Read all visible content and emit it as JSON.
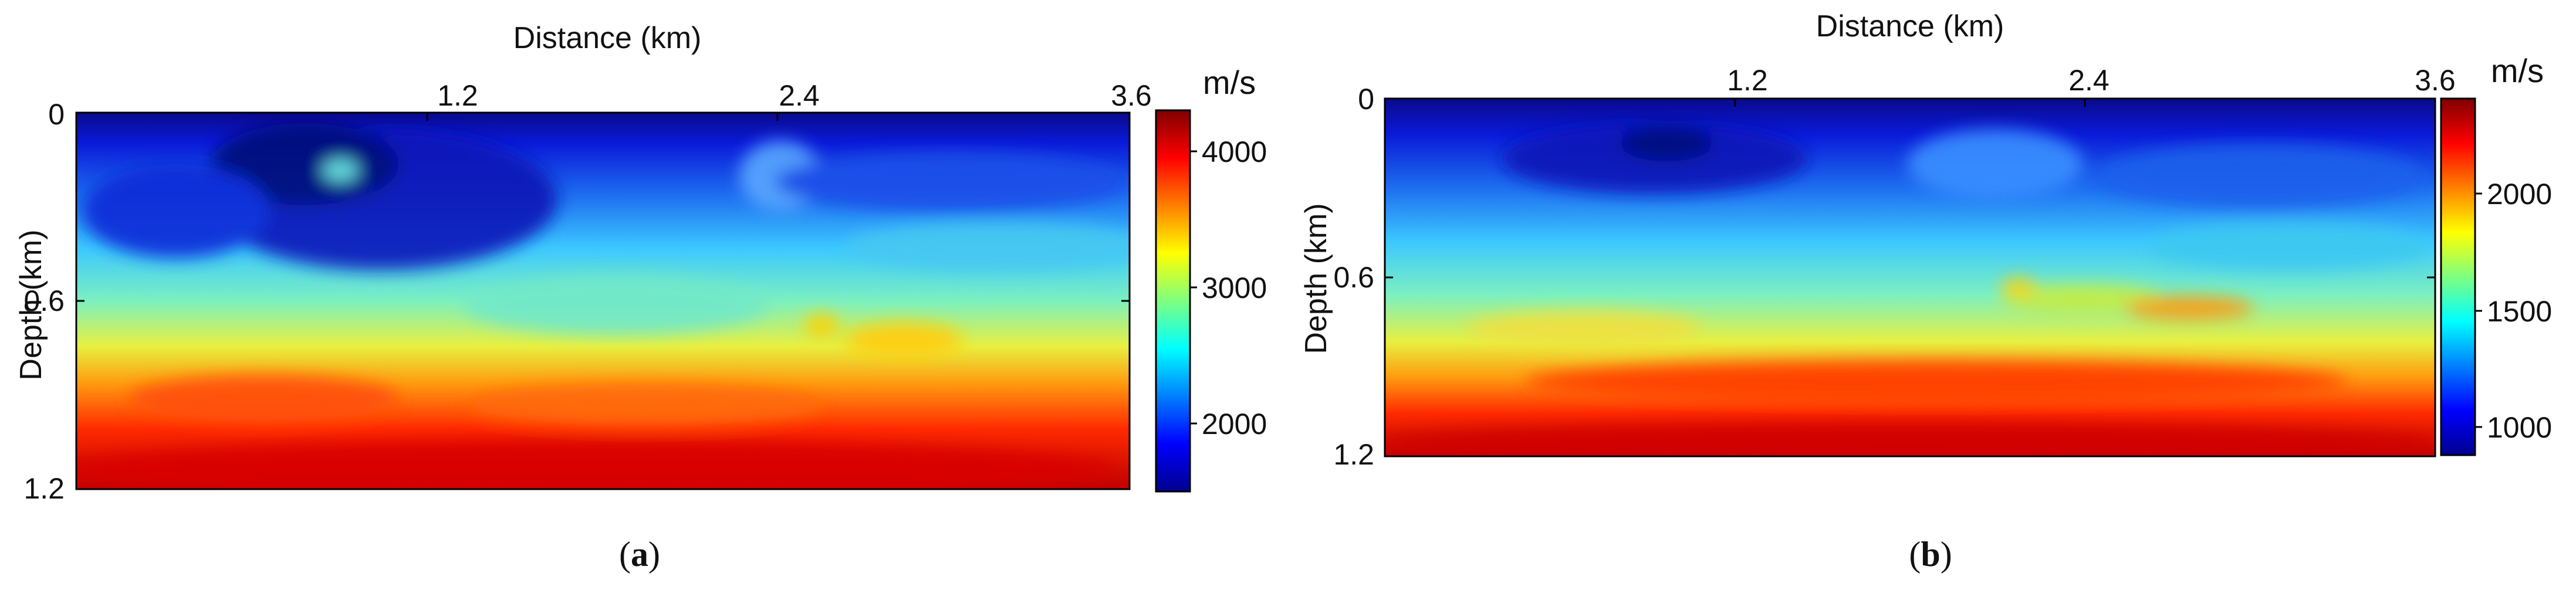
{
  "chart_data": [
    {
      "type": "heatmap",
      "panel_label": "a",
      "xlabel": "Distance (km)",
      "ylabel": "Depth (km)",
      "x_ticks": [
        "1.2",
        "2.4",
        "3.6"
      ],
      "y_ticks": [
        "0",
        "0.6",
        "1.2"
      ],
      "x_range": [
        0,
        3.6
      ],
      "y_range": [
        0,
        1.2
      ],
      "colorbar_unit": "m/s",
      "colorbar_ticks": [
        "4000",
        "3000",
        "2000"
      ],
      "colorbar_range": [
        1500,
        4300
      ],
      "colormap": "jet",
      "description": "velocity model"
    },
    {
      "type": "heatmap",
      "panel_label": "b",
      "xlabel": "Distance (km)",
      "ylabel": "Depth (km)",
      "x_ticks": [
        "1.2",
        "2.4",
        "3.6"
      ],
      "y_ticks": [
        "0",
        "0.6",
        "1.2"
      ],
      "x_range": [
        0,
        3.6
      ],
      "y_range": [
        0,
        1.2
      ],
      "colorbar_unit": "m/s",
      "colorbar_ticks": [
        "2000",
        "1500",
        "1000"
      ],
      "colorbar_range": [
        900,
        2400
      ],
      "colormap": "jet",
      "description": "velocity model"
    }
  ],
  "captions": {
    "a": {
      "open": "(",
      "letter": "a",
      "close": ")"
    },
    "b": {
      "open": "(",
      "letter": "b",
      "close": ")"
    }
  }
}
